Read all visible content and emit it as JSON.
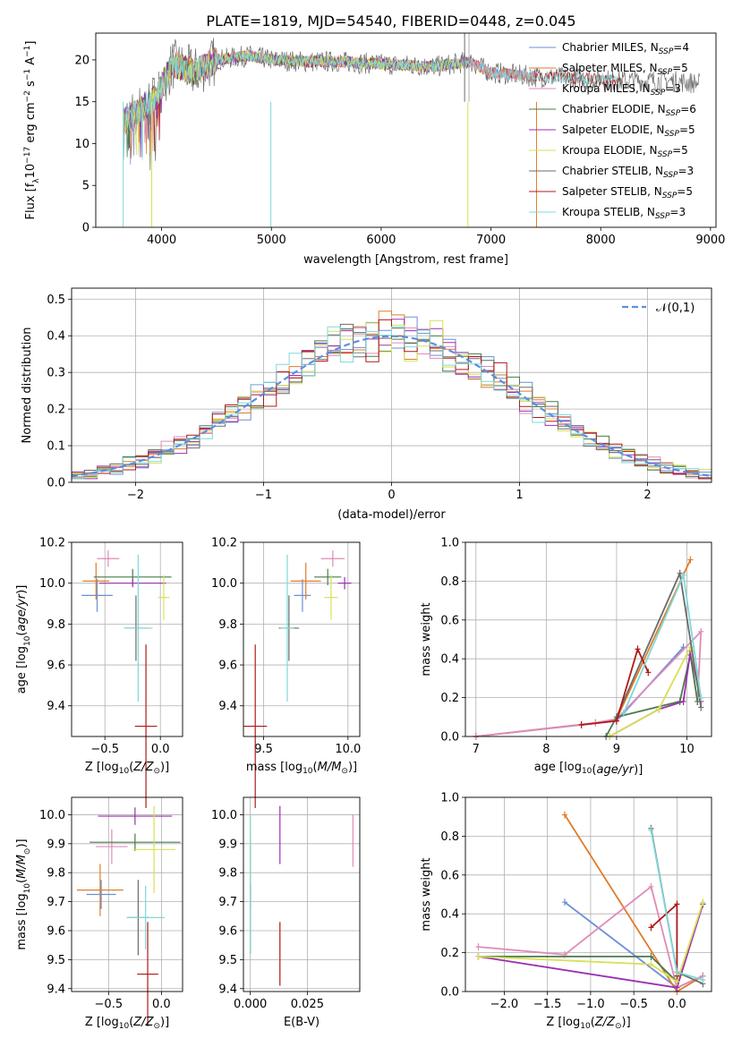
{
  "figure_title": "PLATE=1819, MJD=54540, FIBERID=0448, z=0.045",
  "colors": {
    "Chabrier MILES": "#6a8fd6",
    "Salpeter MILES": "#e07c2a",
    "Kroupa MILES": "#e08ab8",
    "Chabrier ELODIE": "#4a7a4a",
    "Salpeter ELODIE": "#9b30b0",
    "Kroupa ELODIE": "#d8e055",
    "Chabrier STELIB": "#6b6b6b",
    "Salpeter STELIB": "#b01818",
    "Kroupa STELIB": "#7fd8d8"
  },
  "chart_data": [
    {
      "id": "spectrum",
      "type": "line",
      "title": "",
      "xlabel": "wavelength [Angstrom, rest frame]",
      "ylabel": "Flux [f_λ10^-17 erg cm^-2 s^-1 A^-1]",
      "xlim": [
        3400,
        9050
      ],
      "ylim": [
        0,
        23.2
      ],
      "xticks": [
        4000,
        5000,
        6000,
        7000,
        8000,
        9000
      ],
      "yticks": [
        0,
        5,
        10,
        15,
        20
      ],
      "legend_position": "right",
      "legend": [
        {
          "label": "Chabrier MILES, N",
          "sub": "SSP",
          "suffix": "=4",
          "series": "Chabrier MILES"
        },
        {
          "label": "Salpeter MILES, N",
          "sub": "SSP",
          "suffix": "=5",
          "series": "Salpeter MILES"
        },
        {
          "label": "Kroupa MILES, N",
          "sub": "SSP",
          "suffix": "=3",
          "series": "Kroupa MILES"
        },
        {
          "label": "Chabrier ELODIE, N",
          "sub": "SSP",
          "suffix": "=6",
          "series": "Chabrier ELODIE"
        },
        {
          "label": "Salpeter ELODIE, N",
          "sub": "SSP",
          "suffix": "=5",
          "series": "Salpeter ELODIE"
        },
        {
          "label": "Kroupa ELODIE, N",
          "sub": "SSP",
          "suffix": "=5",
          "series": "Kroupa ELODIE"
        },
        {
          "label": "Chabrier STELIB, N",
          "sub": "SSP",
          "suffix": "=3",
          "series": "Chabrier STELIB"
        },
        {
          "label": "Salpeter STELIB, N",
          "sub": "SSP",
          "suffix": "=5",
          "series": "Salpeter STELIB"
        },
        {
          "label": "Kroupa STELIB, N",
          "sub": "SSP",
          "suffix": "=3",
          "series": "Kroupa STELIB"
        }
      ],
      "continuum": [
        [
          3650,
          12.5
        ],
        [
          3800,
          14
        ],
        [
          3950,
          15.5
        ],
        [
          4100,
          19.5
        ],
        [
          4300,
          18.5
        ],
        [
          4500,
          20
        ],
        [
          4800,
          20.5
        ],
        [
          5000,
          20
        ],
        [
          5300,
          19.8
        ],
        [
          5600,
          19.8
        ],
        [
          6000,
          19.5
        ],
        [
          6500,
          19.2
        ],
        [
          6800,
          19.8
        ],
        [
          7000,
          18.5
        ],
        [
          7400,
          18
        ],
        [
          7800,
          17.8
        ],
        [
          8200,
          17.5
        ],
        [
          8600,
          17.5
        ],
        [
          8900,
          17.2
        ]
      ],
      "series_extent": {
        "Chabrier MILES": [
          3650,
          7400
        ],
        "Salpeter MILES": [
          3650,
          7400
        ],
        "Kroupa MILES": [
          3650,
          7400
        ],
        "Chabrier ELODIE": [
          3650,
          6800
        ],
        "Salpeter ELODIE": [
          3650,
          6800
        ],
        "Kroupa ELODIE": [
          3650,
          6800
        ],
        "Chabrier STELIB": [
          3650,
          8900
        ],
        "Salpeter STELIB": [
          3650,
          8200
        ],
        "Kroupa STELIB": [
          3650,
          8200
        ]
      }
    },
    {
      "id": "residuals",
      "type": "line",
      "title": "",
      "xlabel": "(data-model)/error",
      "ylabel": "Normed distribution",
      "xlim": [
        -2.5,
        2.5
      ],
      "ylim": [
        0,
        0.53
      ],
      "xticks": [
        -2,
        -1,
        0,
        1,
        2
      ],
      "yticks": [
        0.0,
        0.1,
        0.2,
        0.3,
        0.4,
        0.5
      ],
      "grid": true,
      "legend_position": "top-right",
      "legend_label": "𝒩(0,1)",
      "gaussian": {
        "mean": 0,
        "sigma": 1,
        "color": "#5b8fe0"
      },
      "hist_series": [
        "Chabrier MILES",
        "Salpeter MILES",
        "Kroupa MILES",
        "Chabrier ELODIE",
        "Salpeter ELODIE",
        "Kroupa ELODIE",
        "Chabrier STELIB",
        "Salpeter STELIB",
        "Kroupa STELIB"
      ],
      "bin_width": 0.1
    },
    {
      "id": "age_vs_Z",
      "type": "scatter",
      "title": "",
      "xlabel": "Z [log10(Z/Z⊙)]",
      "ylabel": "age [log10(age/yr)]",
      "xlim": [
        -0.8,
        0.2
      ],
      "ylim": [
        9.25,
        10.2
      ],
      "xticks": [
        -0.5,
        0.0
      ],
      "yticks": [
        9.4,
        9.6,
        9.8,
        10.0,
        10.2
      ],
      "grid": true,
      "points": [
        {
          "series": "Chabrier MILES",
          "x": -0.57,
          "y": 9.94,
          "xerr": 0.14,
          "yerr": 0.08
        },
        {
          "series": "Salpeter MILES",
          "x": -0.58,
          "y": 10.01,
          "xerr": 0.12,
          "yerr": 0.09
        },
        {
          "series": "Kroupa MILES",
          "x": -0.47,
          "y": 10.12,
          "xerr": 0.1,
          "yerr": 0.04
        },
        {
          "series": "Chabrier ELODIE",
          "x": -0.25,
          "y": 10.03,
          "xerr": 0.35,
          "yerr": 0.04
        },
        {
          "series": "Salpeter ELODIE",
          "x": -0.25,
          "y": 10.0,
          "xerr": 0.3,
          "yerr": 0.02
        },
        {
          "series": "Kroupa ELODIE",
          "x": 0.03,
          "y": 9.93,
          "xerr": 0.05,
          "yerr": 0.11
        },
        {
          "series": "Chabrier STELIB",
          "x": -0.22,
          "y": 9.78,
          "xerr": 0.1,
          "yerr": 0.16
        },
        {
          "series": "Salpeter STELIB",
          "x": -0.13,
          "y": 9.3,
          "xerr": 0.1,
          "yerr": 0.4
        },
        {
          "series": "Kroupa STELIB",
          "x": -0.2,
          "y": 9.78,
          "xerr": 0.13,
          "yerr": 0.36
        }
      ]
    },
    {
      "id": "age_vs_mass",
      "type": "scatter",
      "title": "",
      "xlabel": "mass [log10(M/M⊙)]",
      "ylabel": "",
      "xlim": [
        9.38,
        10.07
      ],
      "ylim": [
        9.25,
        10.2
      ],
      "xticks": [
        9.5,
        10.0
      ],
      "yticks": [
        9.4,
        9.6,
        9.8,
        10.0,
        10.2
      ],
      "grid": true,
      "points": [
        {
          "series": "Chabrier MILES",
          "x": 9.73,
          "y": 9.94,
          "xerr": 0.05,
          "yerr": 0.08
        },
        {
          "series": "Salpeter MILES",
          "x": 9.75,
          "y": 10.01,
          "xerr": 0.09,
          "yerr": 0.09
        },
        {
          "series": "Kroupa MILES",
          "x": 9.91,
          "y": 10.12,
          "xerr": 0.07,
          "yerr": 0.04
        },
        {
          "series": "Chabrier ELODIE",
          "x": 9.88,
          "y": 10.03,
          "xerr": 0.08,
          "yerr": 0.04
        },
        {
          "series": "Salpeter ELODIE",
          "x": 9.98,
          "y": 10.0,
          "xerr": 0.04,
          "yerr": 0.03
        },
        {
          "series": "Kroupa ELODIE",
          "x": 9.9,
          "y": 9.93,
          "xerr": 0.04,
          "yerr": 0.11
        },
        {
          "series": "Chabrier STELIB",
          "x": 9.65,
          "y": 9.78,
          "xerr": 0.06,
          "yerr": 0.16
        },
        {
          "series": "Salpeter STELIB",
          "x": 9.45,
          "y": 9.3,
          "xerr": 0.07,
          "yerr": 0.4
        },
        {
          "series": "Kroupa STELIB",
          "x": 9.64,
          "y": 9.78,
          "xerr": 0.04,
          "yerr": 0.36
        }
      ]
    },
    {
      "id": "weight_vs_age",
      "type": "line",
      "title": "",
      "xlabel": "age [log10(age/yr)]",
      "ylabel": "mass weight",
      "xlim": [
        6.85,
        10.35
      ],
      "ylim": [
        0,
        1.0
      ],
      "xticks": [
        7,
        8,
        9,
        10
      ],
      "yticks": [
        0.0,
        0.2,
        0.4,
        0.6,
        0.8,
        1.0
      ],
      "grid": true,
      "series": [
        {
          "name": "Chabrier MILES",
          "points": [
            [
              7.0,
              0.0
            ],
            [
              9.0,
              0.08
            ],
            [
              9.95,
              0.46
            ]
          ]
        },
        {
          "name": "Salpeter MILES",
          "points": [
            [
              7.0,
              0.0
            ],
            [
              8.7,
              0.07
            ],
            [
              9.0,
              0.09
            ],
            [
              10.05,
              0.91
            ]
          ]
        },
        {
          "name": "Kroupa MILES",
          "points": [
            [
              7.0,
              0.0
            ],
            [
              8.7,
              0.07
            ],
            [
              9.0,
              0.09
            ],
            [
              10.2,
              0.54
            ],
            [
              10.15,
              0.18
            ]
          ]
        },
        {
          "name": "Chabrier ELODIE",
          "points": [
            [
              8.85,
              0.0
            ],
            [
              9.0,
              0.1
            ],
            [
              9.9,
              0.18
            ],
            [
              10.05,
              0.42
            ],
            [
              10.15,
              0.18
            ]
          ]
        },
        {
          "name": "Salpeter ELODIE",
          "points": [
            [
              8.9,
              0.0
            ],
            [
              9.6,
              0.14
            ],
            [
              9.95,
              0.18
            ],
            [
              10.05,
              0.44
            ],
            [
              10.2,
              0.18
            ]
          ]
        },
        {
          "name": "Kroupa ELODIE",
          "points": [
            [
              8.9,
              0.0
            ],
            [
              9.6,
              0.14
            ],
            [
              10.05,
              0.46
            ],
            [
              10.2,
              0.2
            ]
          ]
        },
        {
          "name": "Chabrier STELIB",
          "points": [
            [
              9.0,
              0.1
            ],
            [
              9.9,
              0.84
            ],
            [
              10.2,
              0.15
            ]
          ]
        },
        {
          "name": "Salpeter STELIB",
          "points": [
            [
              8.5,
              0.06
            ],
            [
              9.0,
              0.08
            ],
            [
              9.3,
              0.45
            ],
            [
              9.45,
              0.33
            ]
          ]
        },
        {
          "name": "Kroupa STELIB",
          "points": [
            [
              9.1,
              0.12
            ],
            [
              9.95,
              0.83
            ],
            [
              10.2,
              0.2
            ]
          ]
        }
      ]
    },
    {
      "id": "mass_vs_Z",
      "type": "scatter",
      "title": "",
      "xlabel": "Z [log10(Z/Z⊙)]",
      "ylabel": "mass [log10(M/M⊙)]",
      "xlim": [
        -0.85,
        0.2
      ],
      "ylim": [
        9.39,
        10.06
      ],
      "xticks": [
        -0.5,
        0.0
      ],
      "yticks": [
        9.4,
        9.5,
        9.6,
        9.7,
        9.8,
        9.9,
        10.0
      ],
      "grid": true,
      "points": [
        {
          "series": "Chabrier MILES",
          "x": -0.57,
          "y": 9.725,
          "xerr": 0.14,
          "yerr": 0.05
        },
        {
          "series": "Salpeter MILES",
          "x": -0.58,
          "y": 9.74,
          "xerr": 0.22,
          "yerr": 0.09
        },
        {
          "series": "Kroupa MILES",
          "x": -0.47,
          "y": 9.89,
          "xerr": 0.15,
          "yerr": 0.06
        },
        {
          "series": "Chabrier ELODIE",
          "x": -0.25,
          "y": 9.905,
          "xerr": 0.43,
          "yerr": 0.03
        },
        {
          "series": "Salpeter ELODIE",
          "x": -0.25,
          "y": 9.995,
          "xerr": 0.35,
          "yerr": 0.03
        },
        {
          "series": "Kroupa ELODIE",
          "x": -0.07,
          "y": 9.88,
          "xerr": 0.2,
          "yerr": 0.15
        },
        {
          "series": "Chabrier STELIB",
          "x": -0.22,
          "y": 9.645,
          "xerr": 0.1,
          "yerr": 0.13
        },
        {
          "series": "Salpeter STELIB",
          "x": -0.13,
          "y": 9.45,
          "xerr": 0.1,
          "yerr": 0.18
        },
        {
          "series": "Kroupa STELIB",
          "x": -0.15,
          "y": 9.645,
          "xerr": 0.18,
          "yerr": 0.11
        }
      ]
    },
    {
      "id": "mass_vs_EBV",
      "type": "scatter",
      "title": "",
      "xlabel": "E(B-V)",
      "ylabel": "",
      "xlim": [
        -0.003,
        0.048
      ],
      "ylim": [
        9.39,
        10.06
      ],
      "xticks": [
        0.0,
        0.025
      ],
      "xticklabels": [
        "0.000",
        "0.025"
      ],
      "yticks": [
        9.4,
        9.5,
        9.6,
        9.7,
        9.8,
        9.9,
        10.0
      ],
      "grid": true,
      "points": [
        {
          "series": "Chabrier MILES",
          "x": 0.0,
          "y": 9.725,
          "yerr": 0.05
        },
        {
          "series": "Kroupa MILES",
          "x": 0.045,
          "y": 9.91,
          "yerr": 0.09
        },
        {
          "series": "Chabrier ELODIE",
          "x": 0.0,
          "y": 9.72,
          "yerr": 0.2
        },
        {
          "series": "Salpeter ELODIE",
          "x": 0.013,
          "y": 9.93,
          "yerr": 0.1
        },
        {
          "series": "Kroupa ELODIE",
          "x": 0.0,
          "y": 9.88,
          "yerr": 0.12
        },
        {
          "series": "Salpeter STELIB",
          "x": 0.013,
          "y": 9.52,
          "yerr": 0.11
        },
        {
          "series": "Kroupa STELIB",
          "x": 0.0,
          "y": 9.76,
          "yerr": 0.24
        }
      ]
    },
    {
      "id": "weight_vs_Z",
      "type": "line",
      "title": "",
      "xlabel": "Z [log10(Z/Z⊙)]",
      "ylabel": "mass weight",
      "xlim": [
        -2.45,
        0.4
      ],
      "ylim": [
        0,
        1.0
      ],
      "xticks": [
        -2.0,
        -1.5,
        -1.0,
        -0.5,
        0.0
      ],
      "yticks": [
        0.0,
        0.2,
        0.4,
        0.6,
        0.8,
        1.0
      ],
      "grid": true,
      "series": [
        {
          "name": "Chabrier MILES",
          "points": [
            [
              -1.3,
              0.46
            ],
            [
              0.0,
              0.02
            ],
            [
              0.3,
              0.08
            ]
          ]
        },
        {
          "name": "Salpeter MILES",
          "points": [
            [
              -1.3,
              0.91
            ],
            [
              0.0,
              0.0
            ],
            [
              0.3,
              0.08
            ]
          ]
        },
        {
          "name": "Kroupa MILES",
          "points": [
            [
              -2.3,
              0.23
            ],
            [
              -1.3,
              0.19
            ],
            [
              -0.3,
              0.54
            ],
            [
              0.0,
              0.02
            ],
            [
              0.3,
              0.08
            ]
          ]
        },
        {
          "name": "Chabrier ELODIE",
          "points": [
            [
              -2.3,
              0.18
            ],
            [
              -0.3,
              0.18
            ],
            [
              0.0,
              0.05
            ],
            [
              0.3,
              0.45
            ]
          ]
        },
        {
          "name": "Salpeter ELODIE",
          "points": [
            [
              -2.3,
              0.18
            ],
            [
              0.0,
              0.02
            ],
            [
              0.3,
              0.45
            ]
          ]
        },
        {
          "name": "Kroupa ELODIE",
          "points": [
            [
              -2.3,
              0.18
            ],
            [
              -0.3,
              0.14
            ],
            [
              0.0,
              0.05
            ],
            [
              0.3,
              0.46
            ]
          ]
        },
        {
          "name": "Chabrier STELIB",
          "points": [
            [
              -0.3,
              0.84
            ],
            [
              0.0,
              0.1
            ],
            [
              0.3,
              0.04
            ]
          ]
        },
        {
          "name": "Salpeter STELIB",
          "points": [
            [
              -0.3,
              0.33
            ],
            [
              0.0,
              0.45
            ],
            [
              0.0,
              0.08
            ]
          ]
        },
        {
          "name": "Kroupa STELIB",
          "points": [
            [
              -0.3,
              0.83
            ],
            [
              0.0,
              0.1
            ],
            [
              0.3,
              0.06
            ]
          ]
        }
      ]
    }
  ]
}
